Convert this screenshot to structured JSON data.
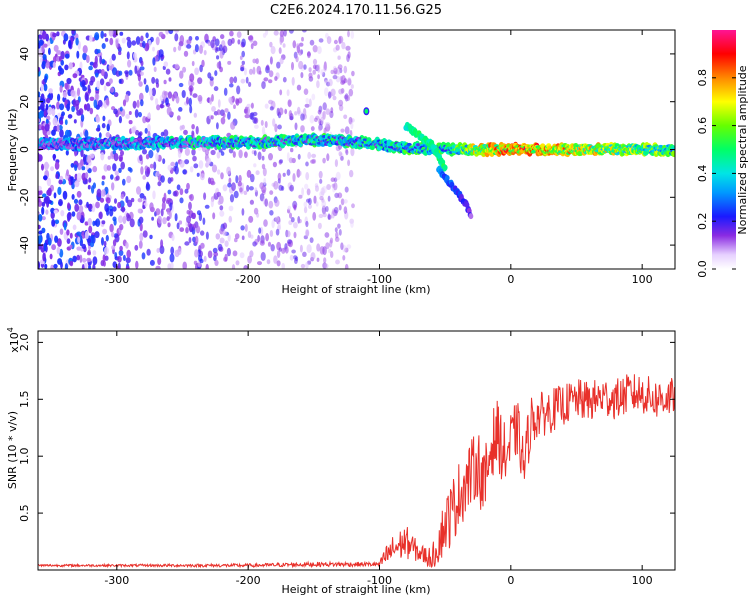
{
  "title": "C2E6.2024.170.11.56.G25",
  "chart_data": [
    {
      "type": "heatmap",
      "xlabel": "Height of straight line (km)",
      "ylabel": "Frequency (Hz)",
      "xlim": [
        -360,
        125
      ],
      "ylim": [
        -50,
        50
      ],
      "xticks": [
        -300,
        -200,
        -100,
        0,
        100
      ],
      "xtick_labels": [
        "-300",
        "-200",
        "-100",
        "0",
        "100"
      ],
      "yticks": [
        40,
        20,
        0,
        -20,
        -40
      ],
      "ytick_labels": [
        "40",
        "20",
        "0",
        "-20",
        "-40"
      ],
      "colorbar": {
        "label": "Normalized spectral amplitude",
        "range": [
          0.0,
          1.0
        ],
        "ticks": [
          0.0,
          0.2,
          0.4,
          0.6,
          0.8
        ],
        "tick_labels": [
          "0.0",
          "0.2",
          "0.4",
          "0.6",
          "0.8"
        ],
        "colormap": "rainbow"
      },
      "features": [
        {
          "description": "noise scatter",
          "x_range": [
            -360,
            -120
          ],
          "freq_range": [
            -50,
            50
          ],
          "amplitude": [
            0.05,
            0.3
          ]
        },
        {
          "description": "main carrier",
          "x_range": [
            -360,
            125
          ],
          "freq_hz": [
            2,
            3,
            3,
            4,
            3,
            1,
            0,
            0,
            0,
            0
          ],
          "x_points": [
            -360,
            -250,
            -200,
            -150,
            -110,
            -90,
            -50,
            0,
            60,
            125
          ],
          "amplitude": [
            0.3,
            0.45,
            0.5,
            0.5,
            0.5,
            0.5,
            0.55,
            0.9,
            0.75,
            0.6
          ]
        },
        {
          "description": "secondary branch",
          "x_points": [
            -80,
            -70,
            -60,
            -50
          ],
          "freq_hz": [
            10,
            6,
            2,
            -8
          ],
          "amplitude": [
            0.4,
            0.5,
            0.45,
            0.5
          ]
        },
        {
          "description": "lower branch",
          "x_points": [
            -55,
            -45,
            -35,
            -30
          ],
          "freq_hz": [
            -8,
            -15,
            -22,
            -28
          ],
          "amplitude": [
            0.3,
            0.25,
            0.2,
            0.15
          ]
        },
        {
          "description": "isolated blob",
          "x": -110,
          "freq_hz": 16,
          "amplitude": 0.5
        }
      ]
    },
    {
      "type": "line",
      "xlabel": "Height of straight line (km)",
      "ylabel": "SNR (10 * v/v)",
      "y_multiplier_base": "x10",
      "y_multiplier_exp": "4",
      "xlim": [
        -360,
        125
      ],
      "ylim": [
        0,
        21000
      ],
      "xticks": [
        -300,
        -200,
        -100,
        0,
        100
      ],
      "xtick_labels": [
        "-300",
        "-200",
        "-100",
        "0",
        "100"
      ],
      "yticks": [
        5000,
        10000,
        15000,
        20000
      ],
      "ytick_labels": [
        "0.5",
        "1.0",
        "1.5",
        "2.0"
      ],
      "series": [
        {
          "color": "#e8302a",
          "x": [
            -360,
            -300,
            -200,
            -150,
            -120,
            -100,
            -95,
            -90,
            -80,
            -75,
            -70,
            -60,
            -55,
            -50,
            -45,
            -40,
            -35,
            -30,
            -25,
            -20,
            -15,
            -10,
            -5,
            0,
            5,
            10,
            15,
            20,
            30,
            40,
            50,
            60,
            70,
            80,
            90,
            100,
            110,
            120,
            125
          ],
          "y": [
            400,
            400,
            400,
            500,
            500,
            500,
            1200,
            1800,
            2500,
            2000,
            1500,
            1000,
            2500,
            4000,
            5000,
            6500,
            7500,
            8500,
            9500,
            7000,
            11000,
            12000,
            10000,
            11000,
            12500,
            9000,
            13000,
            13500,
            14000,
            14500,
            15000,
            14800,
            15200,
            15000,
            15500,
            15500,
            15000,
            15200,
            15000
          ],
          "noise": [
            100,
            100,
            150,
            200,
            200,
            200,
            1000,
            1200,
            1500,
            1200,
            800,
            1000,
            2000,
            2500,
            3000,
            3000,
            3000,
            3000,
            3000,
            3500,
            3000,
            3000,
            3000,
            3000,
            2500,
            2500,
            2500,
            2000,
            2000,
            1800,
            1800,
            1800,
            1800,
            1800,
            1800,
            1800,
            1800,
            1800,
            1800
          ]
        }
      ]
    }
  ]
}
